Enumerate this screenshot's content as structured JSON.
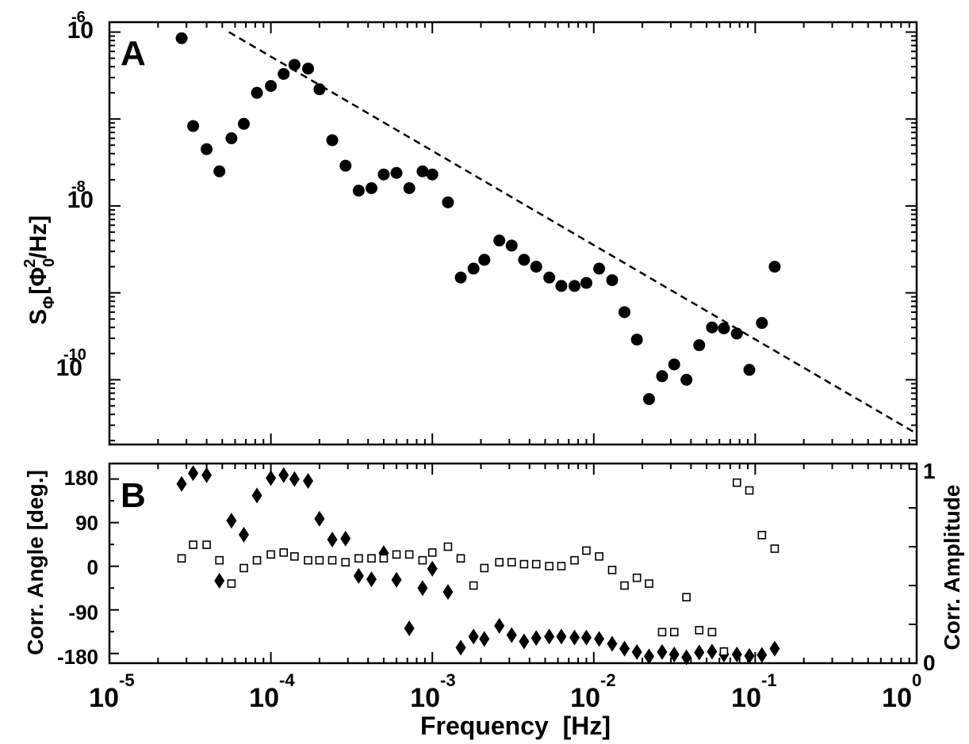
{
  "chart_data": [
    {
      "panel_label": "A",
      "type": "scatter",
      "scale": "log-log",
      "xlim": [
        1e-05,
        1
      ],
      "ylim": [
        1.8e-11,
        1.3e-06
      ],
      "ylabel": {
        "base": "S",
        "sub1": "Φ",
        "bracket_open": "[",
        "phi": "Φ",
        "sub0": "0",
        "sup2": "2",
        "rest": "/Hz]"
      },
      "y_ticks": [
        {
          "value": 1e-06,
          "base": "10",
          "exp": "-6"
        },
        {
          "value": 1e-08,
          "base": "10",
          "exp": "-8"
        },
        {
          "value": 1e-10,
          "base": "10",
          "exp": "-10"
        }
      ],
      "fit_line": {
        "style": "dashed",
        "x": [
          5.5e-05,
          1
        ],
        "y": [
          1e-06,
          2.4e-11
        ]
      },
      "points": [
        [
          2.8e-05,
          8.5e-07
        ],
        [
          3.3e-05,
          8.3e-08
        ],
        [
          4e-05,
          4.5e-08
        ],
        [
          4.8e-05,
          2.5e-08
        ],
        [
          5.7e-05,
          6e-08
        ],
        [
          6.8e-05,
          8.8e-08
        ],
        [
          8.2e-05,
          2e-07
        ],
        [
          0.0001,
          2.4e-07
        ],
        [
          0.00012,
          3.3e-07
        ],
        [
          0.00014,
          4.2e-07
        ],
        [
          0.00017,
          3.8e-07
        ],
        [
          0.0002,
          2.2e-07
        ],
        [
          0.00024,
          5.7e-08
        ],
        [
          0.00029,
          2.9e-08
        ],
        [
          0.00035,
          1.5e-08
        ],
        [
          0.00042,
          1.6e-08
        ],
        [
          0.0005,
          2.3e-08
        ],
        [
          0.0006,
          2.4e-08
        ],
        [
          0.00072,
          1.6e-08
        ],
        [
          0.00087,
          2.5e-08
        ],
        [
          0.001,
          2.3e-08
        ],
        [
          0.00125,
          1.1e-08
        ],
        [
          0.0015,
          1.5e-09
        ],
        [
          0.0018,
          1.9e-09
        ],
        [
          0.0021,
          2.4e-09
        ],
        [
          0.0026,
          4e-09
        ],
        [
          0.0031,
          3.5e-09
        ],
        [
          0.0037,
          2.4e-09
        ],
        [
          0.0044,
          2e-09
        ],
        [
          0.0053,
          1.5e-09
        ],
        [
          0.0063,
          1.2e-09
        ],
        [
          0.0076,
          1.2e-09
        ],
        [
          0.009,
          1.3e-09
        ],
        [
          0.0108,
          1.9e-09
        ],
        [
          0.013,
          1.4e-09
        ],
        [
          0.0155,
          6e-10
        ],
        [
          0.0185,
          2.9e-10
        ],
        [
          0.022,
          6e-11
        ],
        [
          0.0265,
          1.1e-10
        ],
        [
          0.0315,
          1.5e-10
        ],
        [
          0.0375,
          1e-10
        ],
        [
          0.045,
          2.5e-10
        ],
        [
          0.054,
          4e-10
        ],
        [
          0.064,
          3.9e-10
        ],
        [
          0.077,
          3.4e-10
        ],
        [
          0.092,
          1.3e-10
        ],
        [
          0.11,
          4.5e-10
        ],
        [
          0.132,
          2e-09
        ]
      ]
    },
    {
      "panel_label": "B",
      "type": "scatter",
      "scale": "log-x",
      "xlim": [
        1e-05,
        1
      ],
      "xlabel": "Frequency  [Hz]",
      "x_ticks": [
        {
          "value": 1e-05,
          "base": "10",
          "exp": "-5"
        },
        {
          "value": 0.0001,
          "base": "10",
          "exp": "-4"
        },
        {
          "value": 0.001,
          "base": "10",
          "exp": "-3"
        },
        {
          "value": 0.01,
          "base": "10",
          "exp": "-2"
        },
        {
          "value": 0.1,
          "base": "10",
          "exp": "-1"
        },
        {
          "value": 1,
          "base": "10",
          "exp": "0"
        }
      ],
      "left_axis": {
        "label": "Corr. Angle [deg.]",
        "ylim": [
          -200,
          212
        ],
        "ticks": [
          180,
          90,
          0,
          -90,
          -180
        ],
        "tick_labels": [
          "180",
          "90",
          "0",
          "-90",
          "-180"
        ]
      },
      "right_axis": {
        "label": "Corr. Amplitude",
        "ylim": [
          0,
          1
        ],
        "ticks": [
          0,
          1
        ],
        "tick_labels": [
          "0",
          "1"
        ]
      },
      "series": [
        {
          "name": "Corr. Angle",
          "axis": "left",
          "marker": "filled-diamond",
          "points": [
            [
              2.8e-05,
              170
            ],
            [
              3.3e-05,
              192
            ],
            [
              4e-05,
              188
            ],
            [
              4.8e-05,
              -30
            ],
            [
              5.7e-05,
              94
            ],
            [
              6.8e-05,
              65
            ],
            [
              8.2e-05,
              146
            ],
            [
              0.0001,
              182
            ],
            [
              0.00012,
              188
            ],
            [
              0.00014,
              180
            ],
            [
              0.00017,
              176
            ],
            [
              0.0002,
              98
            ],
            [
              0.00024,
              55
            ],
            [
              0.00029,
              57
            ],
            [
              0.00035,
              -20
            ],
            [
              0.00042,
              -27
            ],
            [
              0.0005,
              27
            ],
            [
              0.0006,
              -28
            ],
            [
              0.00072,
              -128
            ],
            [
              0.00087,
              -45
            ],
            [
              0.001,
              -5
            ],
            [
              0.00125,
              -53
            ],
            [
              0.0015,
              -168
            ],
            [
              0.0018,
              -145
            ],
            [
              0.0021,
              -150
            ],
            [
              0.0026,
              -123
            ],
            [
              0.0031,
              -142
            ],
            [
              0.0037,
              -155
            ],
            [
              0.0044,
              -148
            ],
            [
              0.0053,
              -145
            ],
            [
              0.0063,
              -145
            ],
            [
              0.0076,
              -147
            ],
            [
              0.009,
              -147
            ],
            [
              0.0108,
              -150
            ],
            [
              0.013,
              -160
            ],
            [
              0.0155,
              -170
            ],
            [
              0.0185,
              -177
            ],
            [
              0.022,
              -186
            ],
            [
              0.0265,
              -177
            ],
            [
              0.0315,
              -182
            ],
            [
              0.0375,
              -188
            ],
            [
              0.045,
              -178
            ],
            [
              0.054,
              -176
            ],
            [
              0.064,
              -182
            ],
            [
              0.077,
              -182
            ],
            [
              0.092,
              -185
            ],
            [
              0.11,
              -183
            ],
            [
              0.132,
              -170
            ]
          ]
        },
        {
          "name": "Corr. Amplitude",
          "axis": "right",
          "marker": "open-square",
          "points": [
            [
              2.8e-05,
              0.54
            ],
            [
              3.3e-05,
              0.61
            ],
            [
              4e-05,
              0.61
            ],
            [
              4.8e-05,
              0.53
            ],
            [
              5.7e-05,
              0.41
            ],
            [
              6.8e-05,
              0.49
            ],
            [
              8.2e-05,
              0.53
            ],
            [
              0.0001,
              0.56
            ],
            [
              0.00012,
              0.57
            ],
            [
              0.00014,
              0.55
            ],
            [
              0.00017,
              0.53
            ],
            [
              0.0002,
              0.53
            ],
            [
              0.00024,
              0.53
            ],
            [
              0.00029,
              0.52
            ],
            [
              0.00035,
              0.54
            ],
            [
              0.00042,
              0.54
            ],
            [
              0.0005,
              0.54
            ],
            [
              0.0006,
              0.56
            ],
            [
              0.00072,
              0.56
            ],
            [
              0.00087,
              0.53
            ],
            [
              0.001,
              0.57
            ],
            [
              0.00125,
              0.6
            ],
            [
              0.0015,
              0.54
            ],
            [
              0.0018,
              0.4
            ],
            [
              0.0021,
              0.49
            ],
            [
              0.0026,
              0.52
            ],
            [
              0.0031,
              0.52
            ],
            [
              0.0037,
              0.51
            ],
            [
              0.0044,
              0.51
            ],
            [
              0.0053,
              0.5
            ],
            [
              0.0063,
              0.5
            ],
            [
              0.0076,
              0.53
            ],
            [
              0.009,
              0.58
            ],
            [
              0.0108,
              0.55
            ],
            [
              0.013,
              0.48
            ],
            [
              0.0155,
              0.4
            ],
            [
              0.0185,
              0.44
            ],
            [
              0.022,
              0.41
            ],
            [
              0.0265,
              0.16
            ],
            [
              0.0315,
              0.16
            ],
            [
              0.0375,
              0.34
            ],
            [
              0.045,
              0.17
            ],
            [
              0.054,
              0.16
            ],
            [
              0.064,
              0.06
            ],
            [
              0.077,
              0.93
            ],
            [
              0.092,
              0.89
            ],
            [
              0.11,
              0.66
            ],
            [
              0.132,
              0.59
            ]
          ]
        }
      ]
    }
  ]
}
